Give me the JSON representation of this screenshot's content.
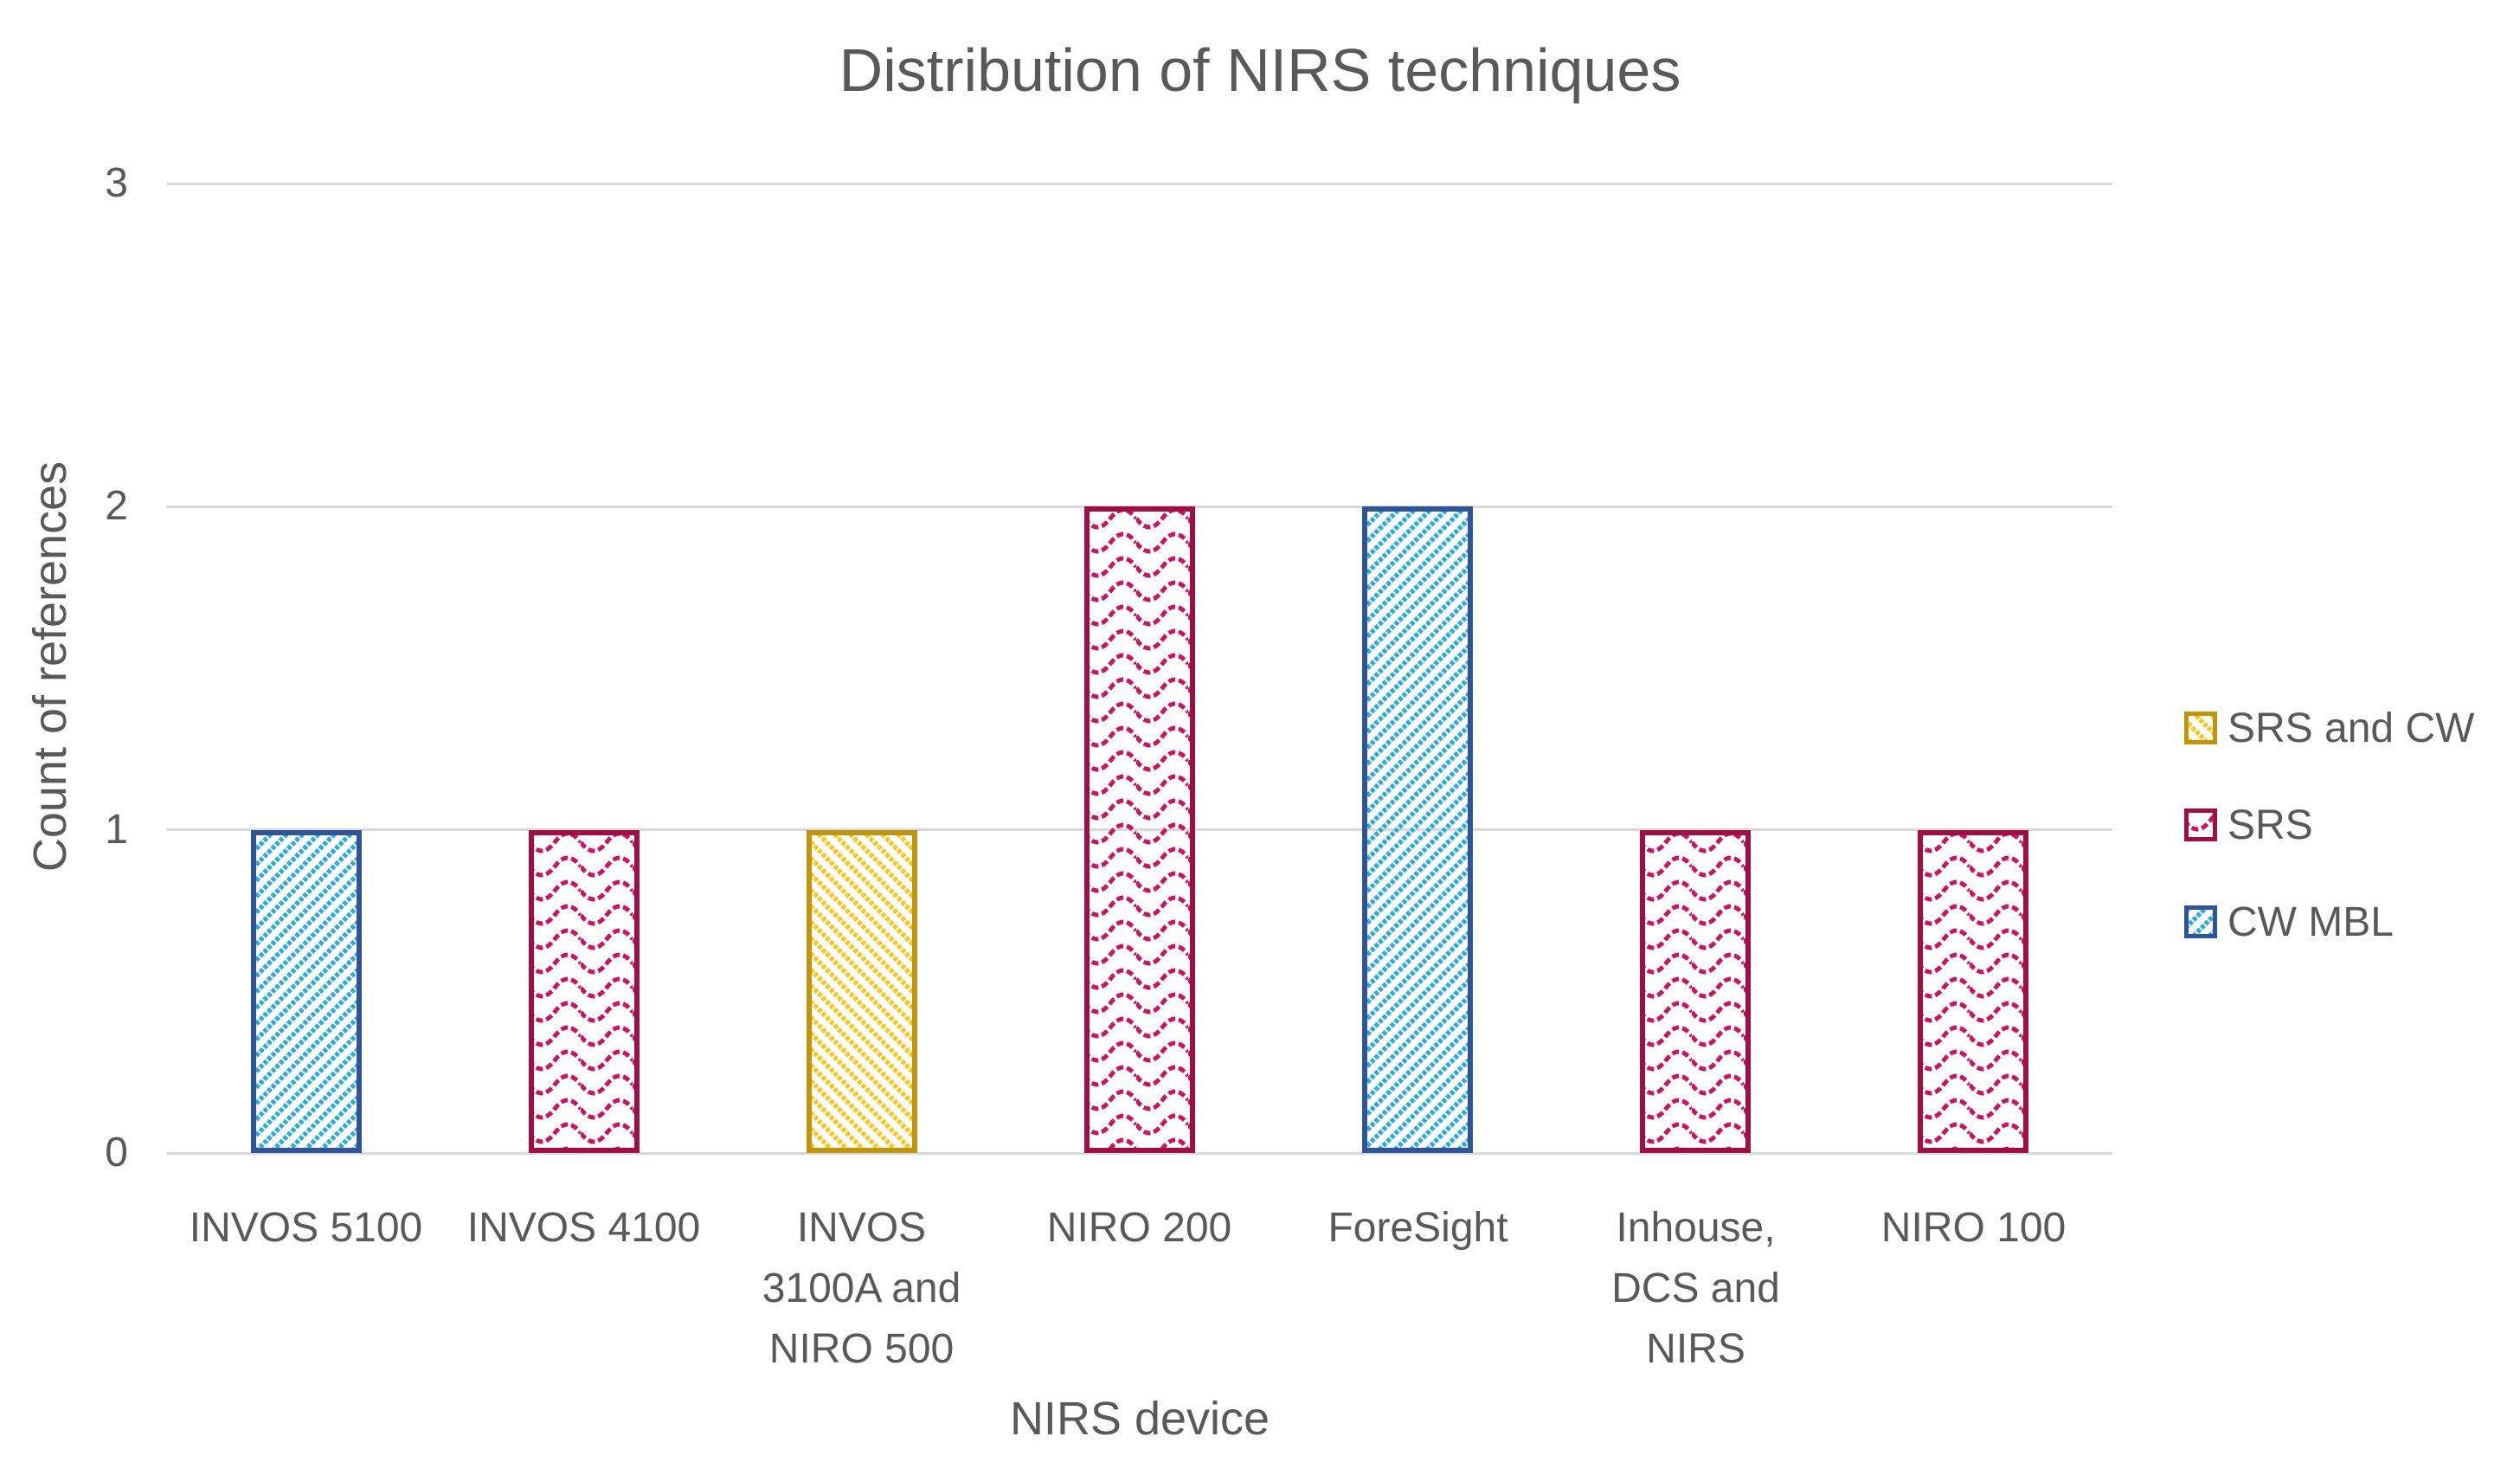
{
  "title": "Distribution of NIRS techniques",
  "colors": {
    "text": "#595959",
    "gridline": "#D9D9D9",
    "background": "#FFFFFF"
  },
  "legend": {
    "position": "right",
    "items": [
      "SRS and CW",
      "SRS",
      "CW MBL"
    ]
  },
  "chart_data": {
    "type": "bar",
    "title": "Distribution of NIRS techniques",
    "xlabel": "NIRS device",
    "ylabel": "Count of references",
    "ylim": [
      0,
      3
    ],
    "yticks": [
      0,
      1,
      2,
      3
    ],
    "grid": true,
    "legend_position": "right",
    "categories": [
      "INVOS 5100",
      "INVOS 4100",
      "INVOS 3100A and NIRO 500",
      "NIRO 200",
      "ForeSight",
      "Inhouse, DCS and NIRS",
      "NIRO 100"
    ],
    "category_label_lines": [
      [
        "INVOS 5100"
      ],
      [
        "INVOS 4100"
      ],
      [
        "INVOS",
        "3100A and",
        "NIRO 500"
      ],
      [
        "NIRO 200"
      ],
      [
        "ForeSight"
      ],
      [
        "Inhouse,",
        "DCS and",
        "NIRS"
      ],
      [
        "NIRO 100"
      ]
    ],
    "values": [
      1,
      1,
      1,
      2,
      2,
      1,
      1
    ],
    "bar_series": [
      "CW MBL",
      "SRS",
      "SRS and CW",
      "SRS",
      "CW MBL",
      "SRS",
      "SRS"
    ],
    "series": [
      {
        "name": "SRS and CW",
        "pattern": "diagonal-down",
        "fill": "#FFC417",
        "border": "#BF940F"
      },
      {
        "name": "SRS",
        "pattern": "wave",
        "fill": "#CE1262",
        "border": "#A10D45"
      },
      {
        "name": "CW MBL",
        "pattern": "diagonal-up",
        "fill": "#2BAAE2",
        "border": "#2F5597"
      }
    ]
  }
}
